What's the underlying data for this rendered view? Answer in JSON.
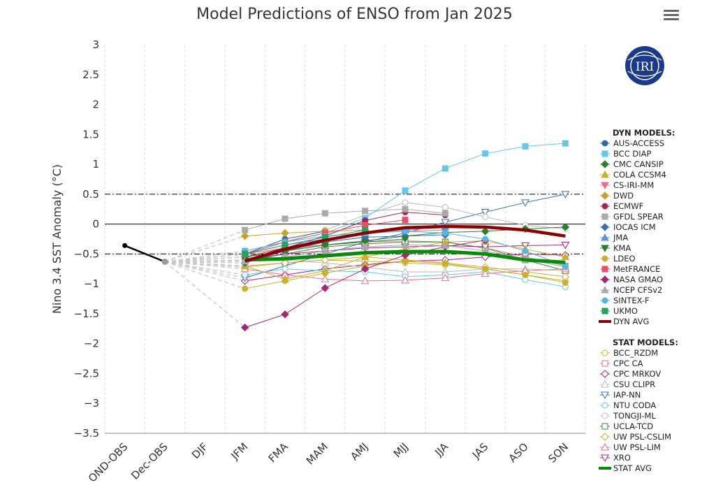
{
  "chart_data": {
    "type": "line",
    "title": "Model Predictions of ENSO from Jan 2025",
    "ylabel": "Nino 3.4 SST Anomaly (°C)",
    "xlabel": "",
    "categories": [
      "OND-OBS",
      "Dec-OBS",
      "DJF",
      "JFM",
      "FMA",
      "MAM",
      "AMJ",
      "MJJ",
      "JJA",
      "JAS",
      "ASO",
      "SON"
    ],
    "ylim": [
      -3.5,
      3
    ],
    "yticks": [
      3,
      2.5,
      2,
      1.5,
      1,
      0.5,
      0,
      -0.5,
      -1,
      -1.5,
      -2,
      -2.5,
      -3,
      -3.5
    ],
    "ytick_labels": [
      "3",
      "2.5",
      "2",
      "1.5",
      "1",
      "0.5",
      "0",
      "−0.5",
      "−1",
      "−1.5",
      "−2",
      "−2.5",
      "−3",
      "−3.5"
    ],
    "reference_lines": [
      0.5,
      -0.5
    ],
    "grid": "vertical dashed",
    "legend_position": "right",
    "observed": {
      "x": [
        0,
        1
      ],
      "values": [
        -0.36,
        -0.63
      ]
    },
    "dyn_header": "DYN MODELS:",
    "stat_header": "STAT MODELS:",
    "dyn_models": [
      {
        "name": "AUS-ACCESS",
        "color": "#2f6ca3",
        "marker": "circle",
        "values": [
          null,
          null,
          null,
          -0.5,
          -0.25,
          -0.12
        ]
      },
      {
        "name": "BCC DIAP",
        "color": "#66c7e8",
        "marker": "square",
        "values": [
          null,
          null,
          null,
          -0.45,
          -0.3,
          -0.15,
          0.1,
          0.56,
          0.93,
          1.18,
          1.3,
          1.35
        ]
      },
      {
        "name": "CMC CANSIP",
        "color": "#2e7d32",
        "marker": "diamond",
        "values": [
          null,
          null,
          null,
          -0.55,
          -0.45,
          -0.35,
          -0.28,
          -0.2,
          -0.14,
          -0.12,
          -0.08,
          -0.05
        ]
      },
      {
        "name": "COLA CCSM4",
        "color": "#c9b12e",
        "marker": "triangle",
        "values": [
          null,
          null,
          null,
          -0.7,
          -0.92,
          -0.78,
          -0.55,
          -0.42,
          -0.3,
          -0.28,
          -0.42,
          -0.55
        ]
      },
      {
        "name": "CS-IRI-MM",
        "color": "#e8708a",
        "marker": "triangle-down",
        "values": [
          null,
          null,
          null,
          -0.6,
          -0.4,
          -0.25,
          -0.15,
          -0.12,
          -0.1
        ]
      },
      {
        "name": "DWD",
        "color": "#c9a227",
        "marker": "diamond",
        "values": [
          null,
          null,
          null,
          -0.2,
          -0.15,
          -0.12,
          -0.1
        ]
      },
      {
        "name": "ECMWF",
        "color": "#a3285a",
        "marker": "circle",
        "values": [
          null,
          null,
          null,
          -0.55,
          -0.4,
          -0.2,
          0.06,
          0.2,
          0.15
        ]
      },
      {
        "name": "GFDL SPEAR",
        "color": "#aaaaaa",
        "marker": "square",
        "values": [
          null,
          null,
          null,
          -0.1,
          0.09,
          0.18,
          0.22,
          0.25,
          0.18
        ]
      },
      {
        "name": "IOCAS ICM",
        "color": "#3a6fb0",
        "marker": "diamond",
        "values": [
          null,
          null,
          null,
          -0.65,
          -0.45,
          -0.3,
          -0.22,
          -0.2,
          -0.18
        ]
      },
      {
        "name": "JMA",
        "color": "#5b95d6",
        "marker": "triangle",
        "values": [
          null,
          null,
          null,
          -0.5,
          -0.35,
          -0.25,
          -0.15,
          -0.1,
          -0.05
        ]
      },
      {
        "name": "KMA",
        "color": "#2e7d32",
        "marker": "triangle-down",
        "values": [
          null,
          null,
          null,
          -0.55,
          -0.45,
          -0.35,
          -0.3,
          -0.25
        ]
      },
      {
        "name": "LDEO",
        "color": "#c9b12e",
        "marker": "circle",
        "values": [
          null,
          null,
          null,
          -1.08,
          -0.95,
          -0.82,
          -0.7,
          -0.62,
          -0.66,
          -0.75,
          -0.85,
          -0.98
        ]
      },
      {
        "name": "MetFRANCE",
        "color": "#e8506a",
        "marker": "square",
        "values": [
          null,
          null,
          null,
          -0.5,
          -0.3,
          -0.15,
          -0.02,
          0.07
        ]
      },
      {
        "name": "NASA GMAO",
        "color": "#a3287a",
        "marker": "diamond",
        "values": [
          null,
          null,
          null,
          -1.73,
          -1.51,
          -1.07,
          -0.75,
          -0.52,
          -0.38,
          -0.27
        ]
      },
      {
        "name": "NCEP CFSv2",
        "color": "#aaaaaa",
        "marker": "triangle",
        "values": [
          null,
          null,
          null,
          -0.62,
          -0.55,
          -0.45,
          -0.38,
          -0.35,
          -0.36,
          -0.45,
          -0.58,
          -0.72
        ]
      },
      {
        "name": "SINTEX-F",
        "color": "#55b8e0",
        "marker": "circle",
        "values": [
          null,
          null,
          null,
          -0.45,
          -0.3,
          -0.2,
          -0.15,
          -0.12,
          -0.15,
          -0.25,
          -0.45,
          -0.7
        ]
      },
      {
        "name": "UKMO",
        "color": "#2e9e5e",
        "marker": "square",
        "values": [
          null,
          null,
          null,
          -0.5,
          -0.35,
          -0.22,
          -0.1
        ]
      }
    ],
    "dyn_avg": {
      "name": "DYN AVG",
      "color": "#8b0000",
      "values": [
        null,
        null,
        null,
        -0.62,
        -0.42,
        -0.27,
        -0.15,
        -0.06,
        -0.04,
        -0.05,
        -0.1,
        -0.2
      ]
    },
    "stat_models": [
      {
        "name": "BCC_RZDM",
        "color": "#c9b12e",
        "marker": "circle",
        "values": [
          null,
          null,
          null,
          -0.7,
          -0.65,
          -0.6,
          -0.62,
          -0.65,
          -0.68,
          -0.75,
          -0.85,
          -0.95
        ]
      },
      {
        "name": "CPC CA",
        "color": "#e8708a",
        "marker": "square",
        "values": [
          null,
          null,
          null,
          -0.5,
          -0.4,
          -0.35,
          -0.3,
          -0.28,
          -0.3,
          -0.4,
          -0.55,
          -0.7
        ]
      },
      {
        "name": "CPC MRKOV",
        "color": "#a3287a",
        "marker": "diamond",
        "values": [
          null,
          null,
          null,
          -0.95,
          -0.85,
          -0.75,
          -0.68,
          -0.62,
          -0.6,
          -0.55,
          -0.5,
          -0.52
        ]
      },
      {
        "name": "CSU CLIPR",
        "color": "#bbbbbb",
        "marker": "triangle",
        "values": [
          null,
          null,
          null,
          -0.55,
          -0.6,
          -0.65,
          -0.72,
          -0.8,
          -0.8,
          -0.75,
          -0.75,
          -0.78
        ]
      },
      {
        "name": "IAP-NN",
        "color": "#3a6fb0",
        "marker": "triangle-down",
        "values": [
          null,
          null,
          null,
          -0.9,
          -0.7,
          -0.5,
          -0.3,
          -0.15,
          0.03,
          0.2,
          0.36,
          0.5
        ]
      },
      {
        "name": "NTU CODA",
        "color": "#66c7e8",
        "marker": "circle",
        "values": [
          null,
          null,
          null,
          -0.85,
          -0.75,
          -0.78,
          -0.8,
          -0.88,
          -0.85,
          -0.8,
          -0.93,
          -1.05
        ]
      },
      {
        "name": "TONGJI-ML",
        "color": "#bbbbbb",
        "marker": "circle",
        "values": [
          null,
          null,
          null,
          -0.5,
          -0.3,
          -0.1,
          0.15,
          0.36,
          0.28,
          0.12,
          -0.02,
          -0.08
        ]
      },
      {
        "name": "UCLA-TCD",
        "color": "#3a8a3a",
        "marker": "square",
        "values": [
          null,
          null,
          null,
          -0.62,
          -0.5,
          -0.38,
          -0.33,
          -0.3,
          -0.3,
          -0.4,
          -0.6,
          -0.78
        ]
      },
      {
        "name": "UW PSL-CSLIM",
        "color": "#c9b12e",
        "marker": "diamond",
        "values": [
          null,
          null,
          null,
          -0.72,
          -0.65,
          -0.6,
          -0.55,
          -0.6,
          -0.65,
          -0.72,
          -0.8,
          -0.88
        ]
      },
      {
        "name": "UW PSL-LIM",
        "color": "#e8708a",
        "marker": "triangle",
        "values": [
          null,
          null,
          null,
          -0.75,
          -0.85,
          -0.92,
          -0.95,
          -0.94,
          -0.9,
          -0.83,
          -0.78,
          -0.75
        ]
      },
      {
        "name": "XRO",
        "color": "#a3287a",
        "marker": "triangle-down",
        "values": [
          null,
          null,
          null,
          -0.6,
          -0.5,
          -0.45,
          -0.4,
          -0.38,
          -0.36,
          -0.38,
          -0.36,
          -0.35
        ]
      }
    ],
    "stat_avg": {
      "name": "STAT AVG",
      "color": "#0a8a0a",
      "values": [
        null,
        null,
        null,
        -0.6,
        -0.58,
        -0.53,
        -0.48,
        -0.46,
        -0.46,
        -0.5,
        -0.6,
        -0.64
      ]
    }
  },
  "logo": {
    "text": "IRI"
  }
}
